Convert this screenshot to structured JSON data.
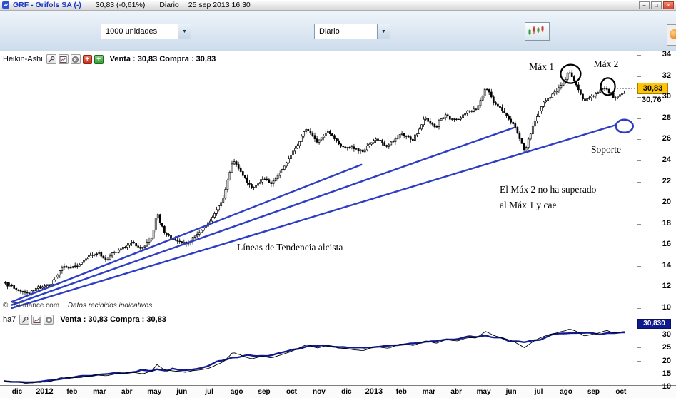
{
  "title_bar": {
    "symbol_title": "GRF - Grifols SA (-)",
    "quote": "30,83 (-0,61%)",
    "period": "Diario",
    "datetime": "25 sep 2013 16:30",
    "window_buttons": [
      "minimize",
      "maximize",
      "close"
    ]
  },
  "toolbar": {
    "units_value": "1000 unidades",
    "period_value": "Diario"
  },
  "main_chart": {
    "name": "Heikin-Ashi",
    "quote_line": "Venta : 30,83 Compra : 30,83",
    "last_price_label": "30,83",
    "secondary_price_label": "30,76",
    "y_axis": [
      34,
      32,
      30,
      28,
      26,
      24,
      22,
      20,
      18,
      16,
      14,
      12,
      10
    ],
    "annotations": {
      "max1": "Máx 1",
      "max2": "Máx 2",
      "soporte": "Soporte",
      "note_line1": "El Máx 2 no ha superado",
      "note_line2": "al Máx 1 y cae",
      "trend_label": "Líneas de Tendencia alcista"
    },
    "copyright": "© IT-Finance.com",
    "disclaimer": "Datos recibidos indicativos"
  },
  "indicator_panel": {
    "name": "ha7",
    "quote_line": "Venta : 30,83 Compra : 30,83",
    "value_label": "30,830",
    "y_axis": [
      30,
      25,
      20,
      15,
      10
    ]
  },
  "time_axis": [
    "dic",
    "2012",
    "feb",
    "mar",
    "abr",
    "may",
    "jun",
    "jul",
    "ago",
    "sep",
    "oct",
    "nov",
    "dic",
    "2013",
    "feb",
    "mar",
    "abr",
    "may",
    "jun",
    "jul",
    "ago",
    "sep",
    "oct"
  ],
  "colors": {
    "trend_blue": "#2e3ec4",
    "indicator_navy": "#101a8f",
    "price_badge_bg": "#fdc40a",
    "titlebar_symbol_blue": "#1837c8",
    "close_button_red": "#d9442c"
  },
  "chart_data": [
    {
      "type": "candlestick",
      "subtype": "heikin-ashi",
      "title": "GRF - Grifols SA - Diario (Heikin-Ashi)",
      "y_range": [
        10,
        34
      ],
      "x_range": [
        "dic 2011",
        "oct 2013"
      ],
      "last": 30.83,
      "price_path": [
        [
          0.0,
          12.3
        ],
        [
          0.015,
          11.8
        ],
        [
          0.035,
          11.2
        ],
        [
          0.055,
          11.7
        ],
        [
          0.075,
          12.1
        ],
        [
          0.095,
          13.6
        ],
        [
          0.115,
          13.4
        ],
        [
          0.135,
          14.3
        ],
        [
          0.15,
          14.9
        ],
        [
          0.165,
          14.4
        ],
        [
          0.185,
          15.4
        ],
        [
          0.205,
          15.7
        ],
        [
          0.222,
          15.1
        ],
        [
          0.238,
          16.2
        ],
        [
          0.246,
          18.7
        ],
        [
          0.258,
          16.6
        ],
        [
          0.275,
          16.1
        ],
        [
          0.292,
          15.7
        ],
        [
          0.31,
          16.4
        ],
        [
          0.33,
          17.6
        ],
        [
          0.352,
          19.8
        ],
        [
          0.368,
          23.5
        ],
        [
          0.383,
          22.2
        ],
        [
          0.398,
          20.9
        ],
        [
          0.415,
          21.9
        ],
        [
          0.432,
          21.4
        ],
        [
          0.45,
          22.8
        ],
        [
          0.468,
          24.6
        ],
        [
          0.487,
          26.6
        ],
        [
          0.503,
          25.3
        ],
        [
          0.522,
          26.2
        ],
        [
          0.54,
          25.1
        ],
        [
          0.56,
          24.7
        ],
        [
          0.578,
          24.3
        ],
        [
          0.598,
          25.8
        ],
        [
          0.618,
          25.2
        ],
        [
          0.638,
          26.5
        ],
        [
          0.658,
          25.9
        ],
        [
          0.678,
          27.8
        ],
        [
          0.695,
          27.1
        ],
        [
          0.712,
          28.6
        ],
        [
          0.728,
          27.8
        ],
        [
          0.745,
          28.9
        ],
        [
          0.76,
          28.8
        ],
        [
          0.775,
          31.3
        ],
        [
          0.79,
          29.4
        ],
        [
          0.806,
          28.3
        ],
        [
          0.822,
          26.9
        ],
        [
          0.838,
          24.7
        ],
        [
          0.852,
          27.4
        ],
        [
          0.865,
          28.9
        ],
        [
          0.88,
          29.9
        ],
        [
          0.897,
          31.0
        ],
        [
          0.91,
          32.2
        ],
        [
          0.922,
          30.8
        ],
        [
          0.934,
          29.2
        ],
        [
          0.95,
          30.1
        ],
        [
          0.97,
          31.1
        ],
        [
          0.982,
          30.2
        ],
        [
          1.0,
          30.83
        ]
      ],
      "trend_lines": [
        {
          "t1": 0.012,
          "p1": 10.6,
          "t2": 0.575,
          "p2": 23.6
        },
        {
          "t1": 0.012,
          "p1": 10.3,
          "t2": 0.82,
          "p2": 27.1
        },
        {
          "t1": 0.012,
          "p1": 10.0,
          "t2": 0.984,
          "p2": 27.35
        }
      ],
      "circles": [
        {
          "label": "Máx 1",
          "t": 0.912,
          "p": 32.2,
          "rx": 14,
          "ry": 13,
          "color": "black"
        },
        {
          "label": "Máx 2",
          "t": 0.972,
          "p": 31.0,
          "rx": 10,
          "ry": 12,
          "color": "black"
        },
        {
          "label": "Soporte",
          "t": 0.9985,
          "p": 27.25,
          "rx": 12,
          "ry": 9,
          "color": "blue"
        }
      ]
    },
    {
      "type": "line",
      "title": "ha7",
      "y_ticks": [
        30,
        25,
        20,
        15,
        10
      ],
      "last_label": "30,830",
      "derived_from_price_path": true
    }
  ]
}
